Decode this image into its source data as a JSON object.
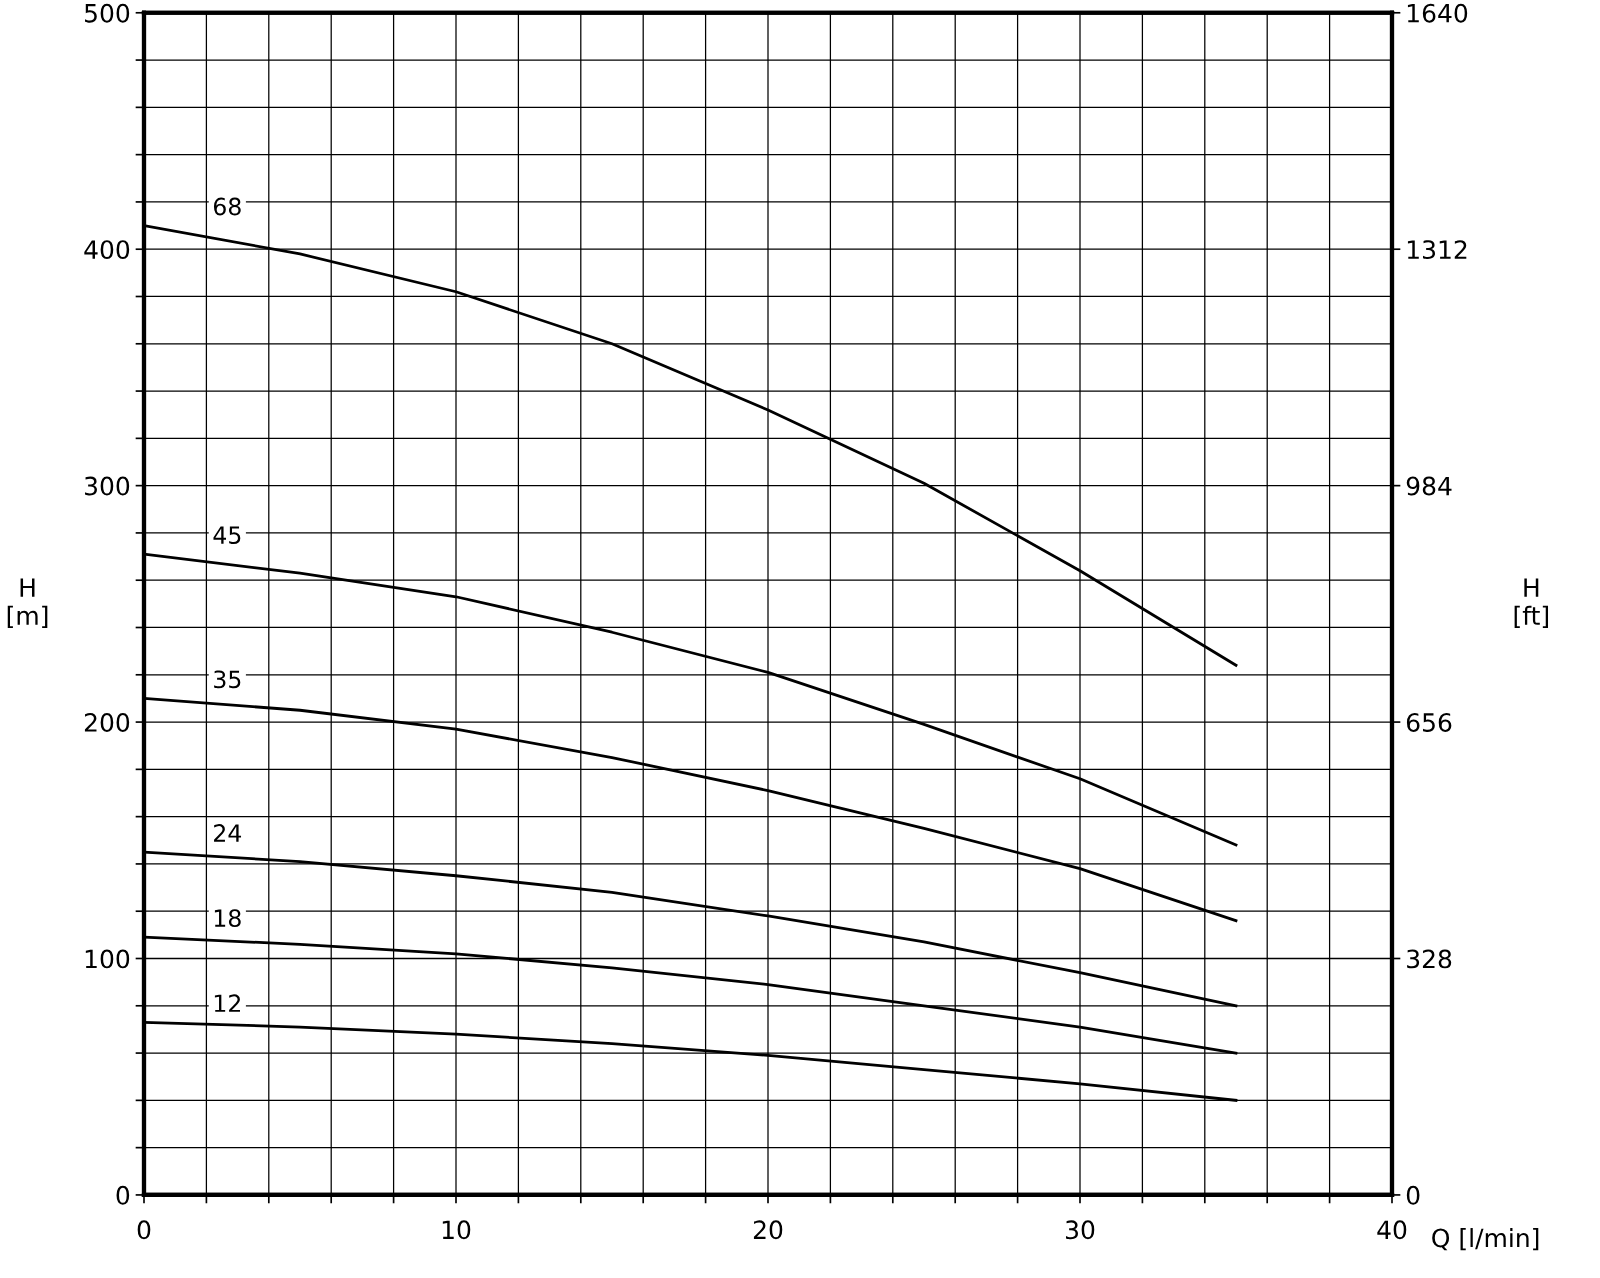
{
  "chart_data": {
    "type": "line",
    "xlabel": "Q [l/min]",
    "ylabel": "H\n[m]",
    "y2label": "H\n[ft]",
    "x": [
      0,
      5,
      10,
      15,
      20,
      25,
      30,
      35
    ],
    "series": [
      {
        "name": "68",
        "color": "#000000",
        "values": [
          410,
          398,
          382,
          360,
          332,
          301,
          264,
          224
        ]
      },
      {
        "name": "45",
        "color": "#000000",
        "values": [
          271,
          263,
          253,
          238,
          221,
          199,
          176,
          148
        ]
      },
      {
        "name": "35",
        "color": "#000000",
        "values": [
          210,
          205,
          197,
          185,
          171,
          155,
          138,
          116
        ]
      },
      {
        "name": "24",
        "color": "#000000",
        "values": [
          145,
          141,
          135,
          128,
          118,
          107,
          94,
          80
        ]
      },
      {
        "name": "18",
        "color": "#000000",
        "values": [
          109,
          106,
          102,
          96,
          89,
          80,
          71,
          60
        ]
      },
      {
        "name": "12",
        "color": "#000000",
        "values": [
          73,
          71,
          68,
          64,
          59,
          53,
          47,
          40
        ]
      }
    ],
    "xlim": [
      0,
      40
    ],
    "xticks": [
      0,
      {
        "value": 2,
        "label": null
      },
      {
        "value": 4,
        "label": null
      },
      {
        "value": 6,
        "label": null
      },
      {
        "value": 8,
        "label": null
      },
      10,
      {
        "value": 12,
        "label": null
      },
      {
        "value": 14,
        "label": null
      },
      {
        "value": 16,
        "label": null
      },
      {
        "value": 18,
        "label": null
      },
      20,
      {
        "value": 22,
        "label": null
      },
      {
        "value": 24,
        "label": null
      },
      {
        "value": 26,
        "label": null
      },
      {
        "value": 28,
        "label": null
      },
      30,
      {
        "value": 32,
        "label": null
      },
      {
        "value": 34,
        "label": null
      },
      {
        "value": 36,
        "label": null
      },
      {
        "value": 38,
        "label": null
      },
      40
    ],
    "ylim": [
      0,
      500
    ],
    "yticks": [
      0,
      {
        "value": 20,
        "label": null
      },
      {
        "value": 40,
        "label": null
      },
      {
        "value": 60,
        "label": null
      },
      {
        "value": 80,
        "label": null
      },
      100,
      {
        "value": 120,
        "label": null
      },
      {
        "value": 140,
        "label": null
      },
      {
        "value": 160,
        "label": null
      },
      {
        "value": 180,
        "label": null
      },
      200,
      {
        "value": 220,
        "label": null
      },
      {
        "value": 240,
        "label": null
      },
      {
        "value": 260,
        "label": null
      },
      {
        "value": 280,
        "label": null
      },
      300,
      {
        "value": 320,
        "label": null
      },
      {
        "value": 340,
        "label": null
      },
      {
        "value": 360,
        "label": null
      },
      {
        "value": 380,
        "label": null
      },
      400,
      {
        "value": 420,
        "label": null
      },
      {
        "value": 440,
        "label": null
      },
      {
        "value": 460,
        "label": null
      },
      {
        "value": 480,
        "label": null
      },
      500
    ],
    "y2lim": [
      0,
      1640
    ],
    "y2ticks": [
      0,
      328,
      656,
      984,
      1312,
      1640
    ],
    "grid": true,
    "legend": false,
    "marker": "none",
    "line_style": "solid"
  }
}
